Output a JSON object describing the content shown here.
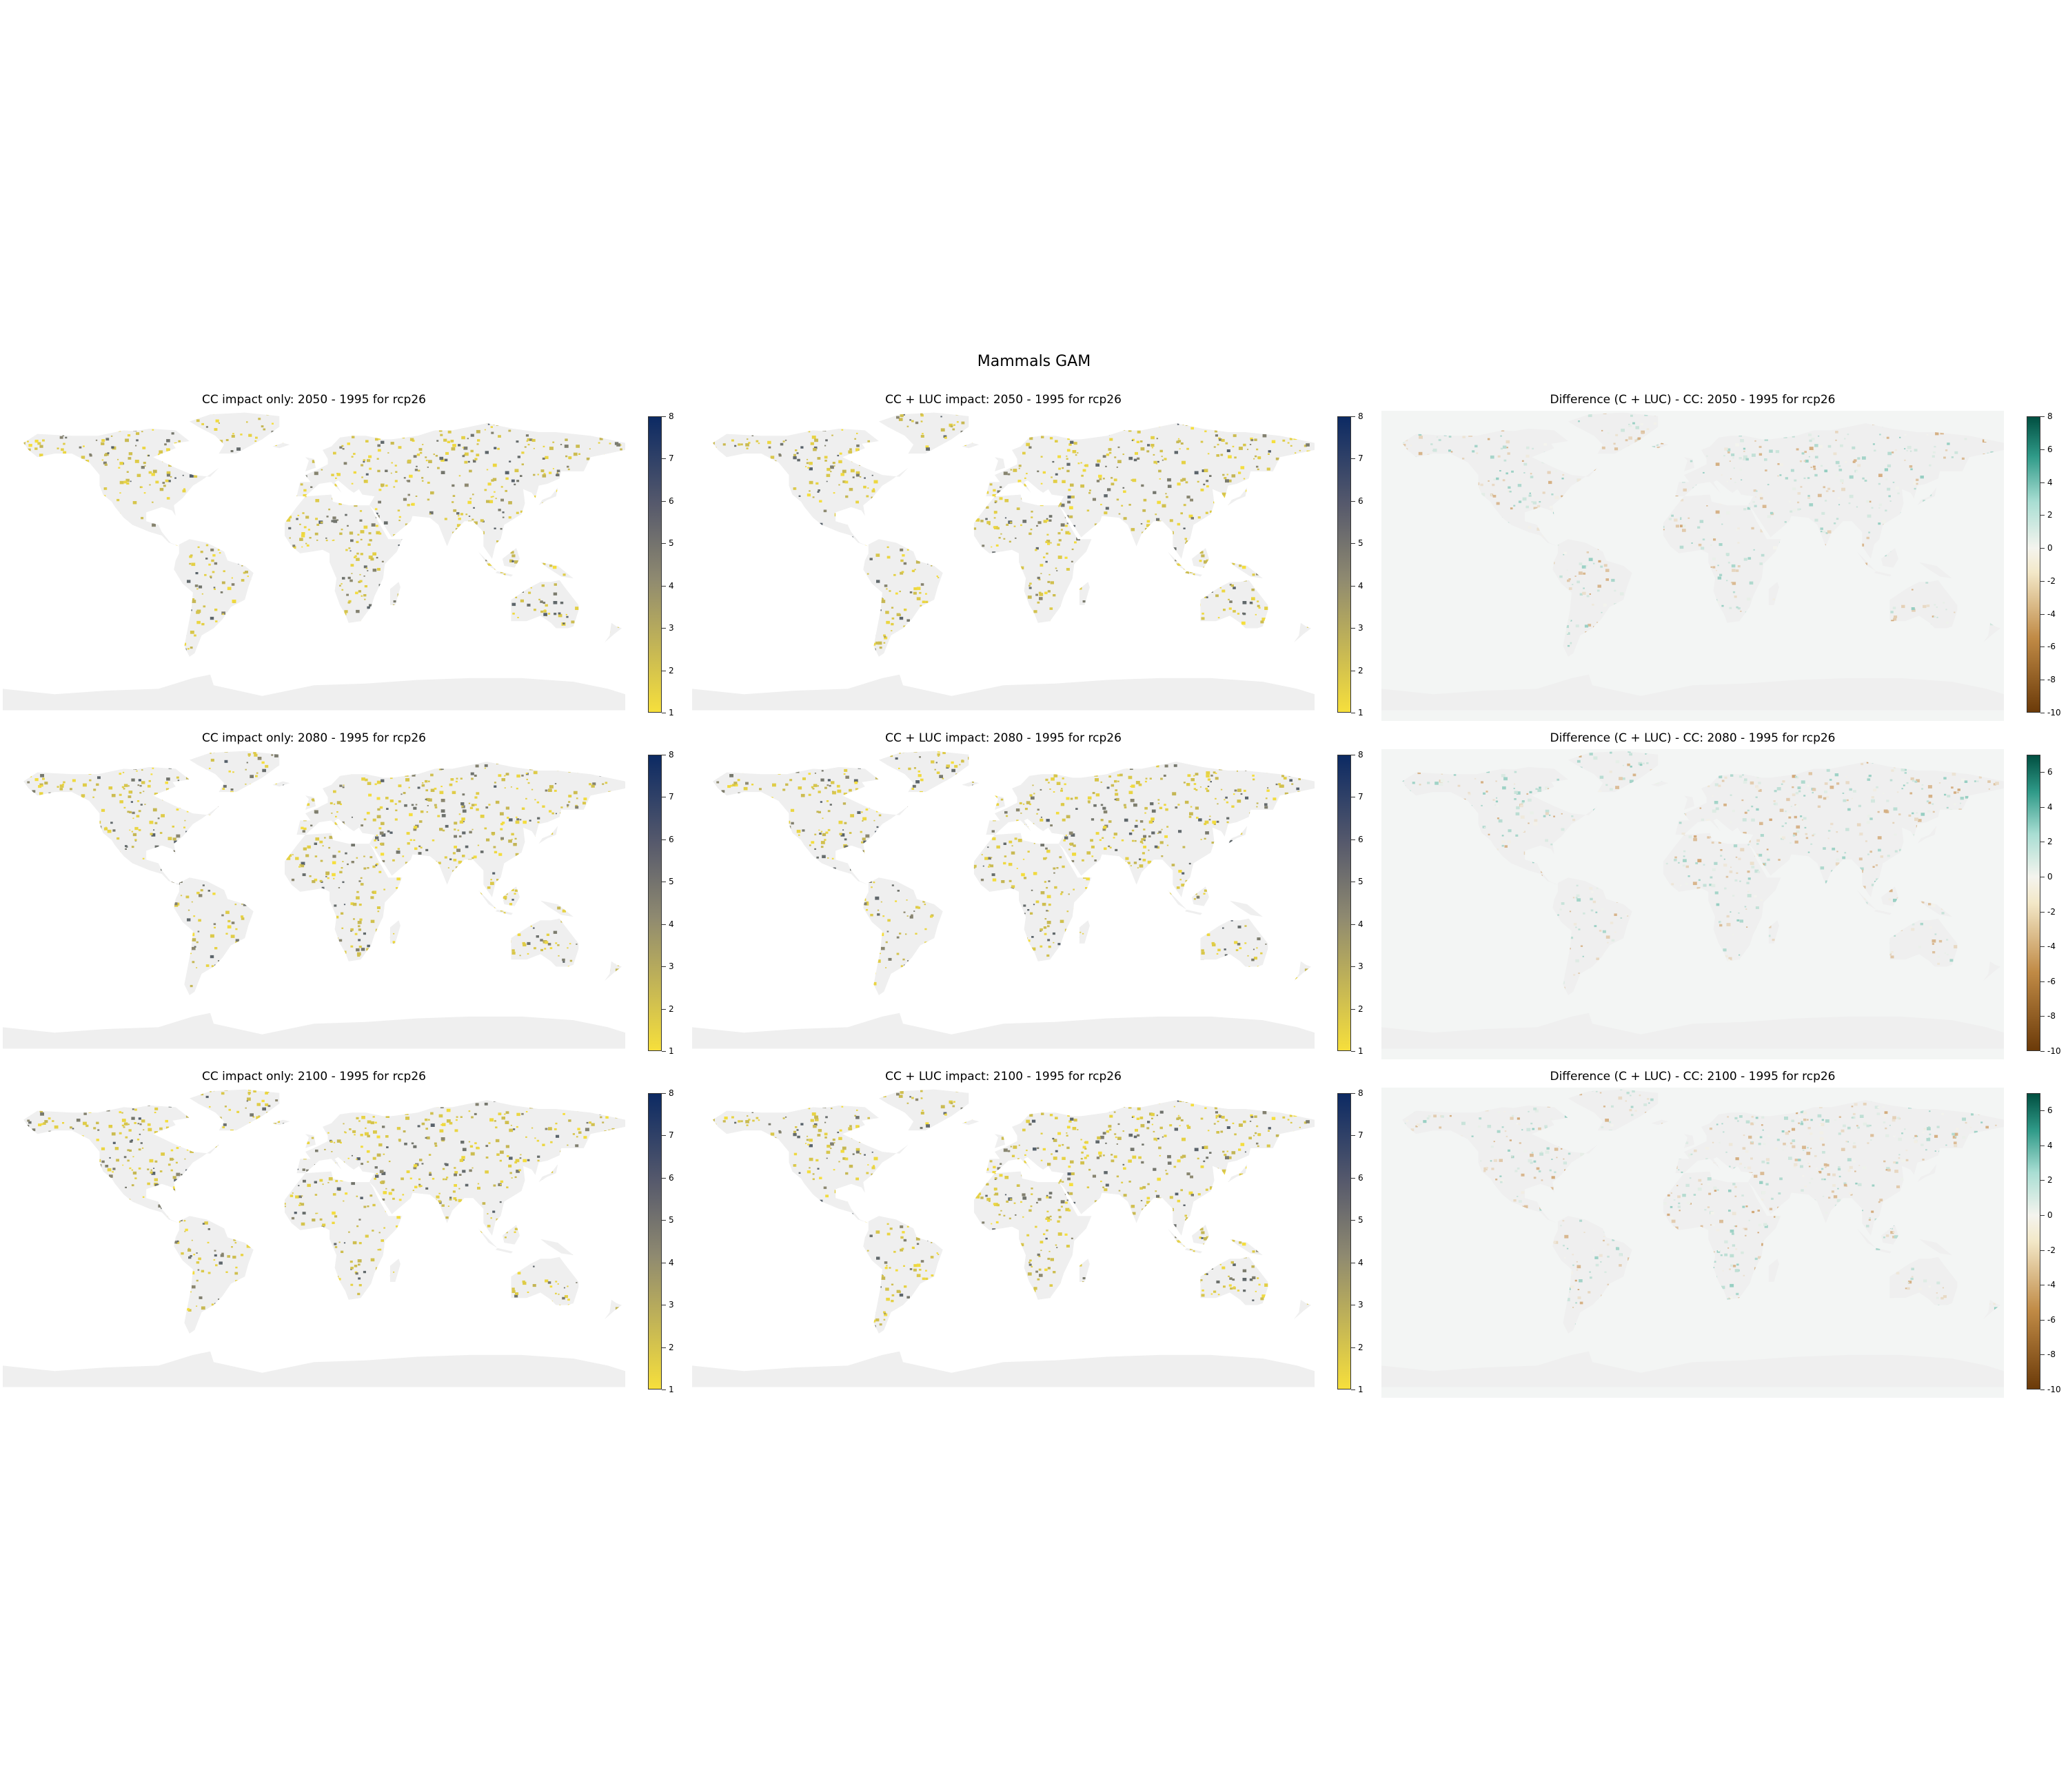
{
  "figure": {
    "title": "Mammals GAM"
  },
  "colors": {
    "land": "#efefef",
    "ocean_diff_background": "#f3f5f4",
    "impact_low": "#f6df3c",
    "impact_mid": "#8f8a70",
    "impact_high": "#0c2a63",
    "diff_negative": "#6b3a09",
    "diff_neutral": "#f4f4ee",
    "diff_positive": "#014f41"
  },
  "colorbars": {
    "impact": {
      "min": 1,
      "max": 8,
      "ticks": [
        "1",
        "2",
        "3",
        "4",
        "5",
        "6",
        "7",
        "8"
      ]
    },
    "diff_2050": {
      "min": -10,
      "max": 8,
      "ticks": [
        "-10",
        "-8",
        "-6",
        "-4",
        "-2",
        "0",
        "2",
        "4",
        "6",
        "8"
      ]
    },
    "diff_2080": {
      "min": -10,
      "max": 7,
      "ticks": [
        "-10",
        "-8",
        "-6",
        "-4",
        "-2",
        "0",
        "2",
        "4",
        "6"
      ]
    },
    "diff_2100": {
      "min": -10,
      "max": 7,
      "ticks": [
        "-10",
        "-8",
        "-6",
        "-4",
        "-2",
        "0",
        "2",
        "4",
        "6"
      ]
    }
  },
  "panels": [
    {
      "title": "CC impact only: 2050 - 1995 for rcp26",
      "kind": "impact",
      "colorbar": "impact"
    },
    {
      "title": "CC + LUC impact: 2050 - 1995 for rcp26",
      "kind": "impact",
      "colorbar": "impact"
    },
    {
      "title": "Difference (C + LUC) - CC: 2050 - 1995 for rcp26",
      "kind": "diff",
      "colorbar": "diff_2050"
    },
    {
      "title": "CC impact only: 2080 - 1995 for rcp26",
      "kind": "impact",
      "colorbar": "impact"
    },
    {
      "title": "CC + LUC impact: 2080 - 1995 for rcp26",
      "kind": "impact",
      "colorbar": "impact"
    },
    {
      "title": "Difference (C + LUC) - CC: 2080 - 1995 for rcp26",
      "kind": "diff",
      "colorbar": "diff_2080"
    },
    {
      "title": "CC impact only: 2100 - 1995 for rcp26",
      "kind": "impact",
      "colorbar": "impact"
    },
    {
      "title": "CC + LUC impact: 2100 - 1995 for rcp26",
      "kind": "impact",
      "colorbar": "impact"
    },
    {
      "title": "Difference (C + LUC) - CC: 2100 - 1995 for rcp26",
      "kind": "diff",
      "colorbar": "diff_2100"
    }
  ]
}
